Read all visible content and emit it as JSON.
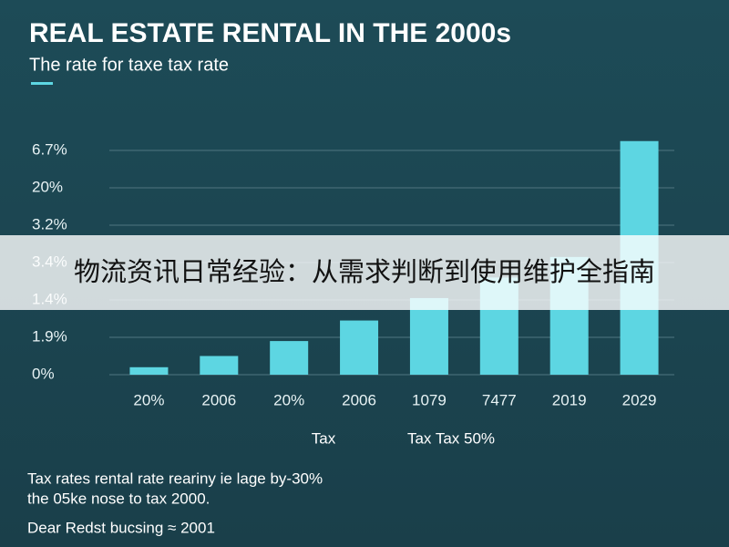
{
  "chart_data": {
    "type": "bar",
    "title": "REAL ESTATE RENTAL IN THE 2000s",
    "subtitle": "The rate for taxe tax rate",
    "categories": [
      "20%",
      "2006",
      "20%",
      "2006",
      "1079",
      "7477",
      "2019",
      "2029"
    ],
    "values": [
      0.2,
      0.5,
      0.9,
      1.45,
      2.05,
      2.6,
      3.15,
      6.25
    ],
    "color": "#5dd6e2",
    "ylim": [
      0,
      6.5
    ],
    "yticks": [
      {
        "value": 0,
        "label": "0%"
      },
      {
        "value": 1,
        "label": "1.9%"
      },
      {
        "value": 2,
        "label": "1.4%"
      },
      {
        "value": 3,
        "label": "3.4%"
      },
      {
        "value": 4,
        "label": "3.2%"
      },
      {
        "value": 5,
        "label": "20%"
      },
      {
        "value": 6,
        "label": "6.7%"
      }
    ],
    "grid": true,
    "annotations": [
      "Tax",
      "Tax Tax  50%"
    ],
    "notes": [
      "Tax rates rental rate reariny ie lage by-30%",
      "the 05ke nose to tax 2000.",
      "Dear Redst bucsing ≈ 2001"
    ]
  },
  "banner": "物流资讯日常经验：从需求判断到使用维护全指南"
}
